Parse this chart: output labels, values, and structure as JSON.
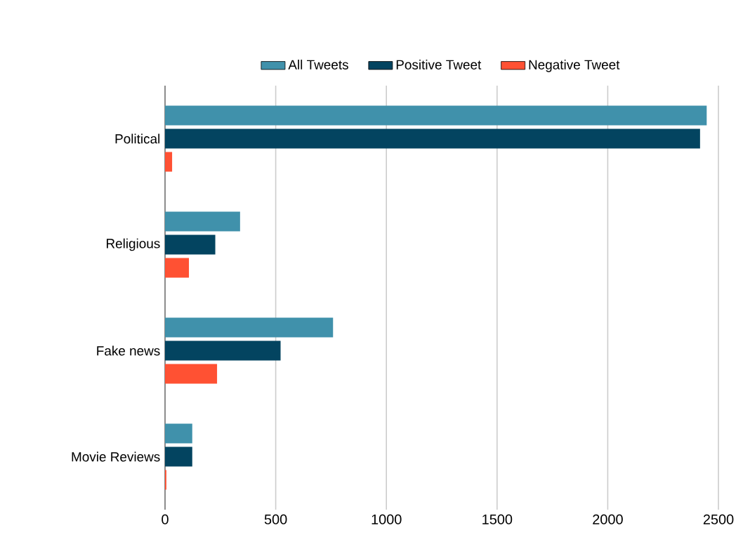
{
  "chart_data": {
    "type": "bar",
    "orientation": "horizontal",
    "categories": [
      "Political",
      "Religious",
      "Fake news",
      "Movie Reviews"
    ],
    "series": [
      {
        "name": "All Tweets",
        "color": "#4091ab",
        "values": [
          2447,
          339,
          759,
          123
        ]
      },
      {
        "name": "Positive Tweet",
        "color": "#034460",
        "values": [
          2417,
          227,
          522,
          123
        ]
      },
      {
        "name": "Negative Tweet",
        "color": "#ff5133",
        "values": [
          32,
          108,
          235,
          6
        ]
      }
    ],
    "xlim": [
      0,
      2500
    ],
    "xticks": [
      0,
      500,
      1000,
      1500,
      2000,
      2500
    ],
    "grid": "x",
    "legend": "top"
  }
}
